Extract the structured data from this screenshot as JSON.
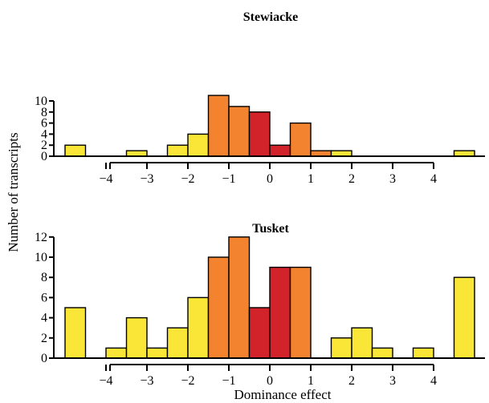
{
  "colors": {
    "tail": "#f9e637",
    "mid": "#f3832e",
    "center": "#d2232a"
  },
  "shared": {
    "ylabel": "Number of transcripts",
    "xlabel": "Dominance effect"
  },
  "chart_data": [
    {
      "type": "bar",
      "title": "Stewiacke",
      "x_ticks": [
        -4,
        -3,
        -2,
        -1,
        0,
        1,
        2,
        3,
        4
      ],
      "x_tick_labels": [
        "−4",
        "−3",
        "−2",
        "−1",
        "0",
        "1",
        "2",
        "3",
        "4"
      ],
      "y_ticks": [
        0,
        2,
        4,
        6,
        8,
        10
      ],
      "ylim": [
        0,
        11
      ],
      "bins": [
        {
          "x": -4.75,
          "value": 2,
          "group": "tail"
        },
        {
          "x": -3.25,
          "value": 1,
          "group": "tail"
        },
        {
          "x": -2.25,
          "value": 2,
          "group": "tail"
        },
        {
          "x": -1.75,
          "value": 4,
          "group": "tail"
        },
        {
          "x": -1.25,
          "value": 11,
          "group": "mid"
        },
        {
          "x": -0.75,
          "value": 9,
          "group": "mid"
        },
        {
          "x": -0.25,
          "value": 8,
          "group": "center"
        },
        {
          "x": 0.25,
          "value": 2,
          "group": "center"
        },
        {
          "x": 0.75,
          "value": 6,
          "group": "mid"
        },
        {
          "x": 1.25,
          "value": 1,
          "group": "mid"
        },
        {
          "x": 1.75,
          "value": 1,
          "group": "tail"
        },
        {
          "x": 4.75,
          "value": 1,
          "group": "tail"
        }
      ]
    },
    {
      "type": "bar",
      "title": "Tusket",
      "x_ticks": [
        -4,
        -3,
        -2,
        -1,
        0,
        1,
        2,
        3,
        4
      ],
      "x_tick_labels": [
        "−4",
        "−3",
        "−2",
        "−1",
        "0",
        "1",
        "2",
        "3",
        "4"
      ],
      "y_ticks": [
        0,
        2,
        4,
        6,
        8,
        10,
        12
      ],
      "ylim": [
        0,
        12
      ],
      "bins": [
        {
          "x": -4.75,
          "value": 5,
          "group": "tail"
        },
        {
          "x": -3.75,
          "value": 1,
          "group": "tail"
        },
        {
          "x": -3.25,
          "value": 4,
          "group": "tail"
        },
        {
          "x": -2.75,
          "value": 1,
          "group": "tail"
        },
        {
          "x": -2.25,
          "value": 3,
          "group": "tail"
        },
        {
          "x": -1.75,
          "value": 6,
          "group": "tail"
        },
        {
          "x": -1.25,
          "value": 10,
          "group": "mid"
        },
        {
          "x": -0.75,
          "value": 12,
          "group": "mid"
        },
        {
          "x": -0.25,
          "value": 5,
          "group": "center"
        },
        {
          "x": 0.25,
          "value": 9,
          "group": "center"
        },
        {
          "x": 0.75,
          "value": 9,
          "group": "mid"
        },
        {
          "x": 1.75,
          "value": 2,
          "group": "tail"
        },
        {
          "x": 2.25,
          "value": 3,
          "group": "tail"
        },
        {
          "x": 2.75,
          "value": 1,
          "group": "tail"
        },
        {
          "x": 3.75,
          "value": 1,
          "group": "tail"
        },
        {
          "x": 4.75,
          "value": 8,
          "group": "tail"
        }
      ]
    }
  ]
}
